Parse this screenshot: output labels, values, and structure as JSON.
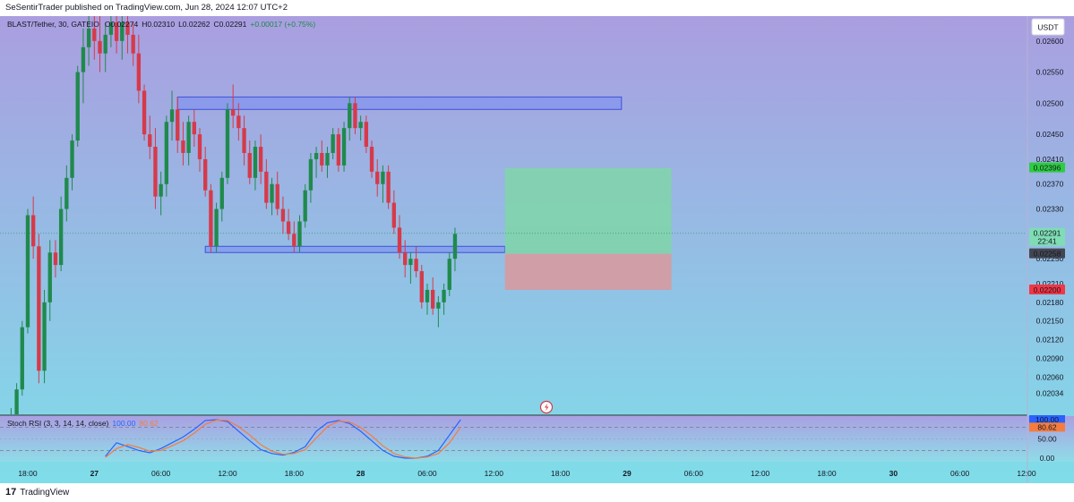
{
  "header": {
    "publisher_line": "SeSentirTrader published on TradingView.com, Jun 28, 2024 12:07 UTC+2"
  },
  "footer": {
    "logo_glyph": "17",
    "brand": "TradingView"
  },
  "colors": {
    "bull": "#1f8a4c",
    "bear": "#d63a4a",
    "bg_top": "#aa9ee0",
    "bg_bottom": "#7fdde9",
    "zone_fill": "#7b8ff0",
    "zone_stroke": "#3f51d8",
    "target_fill": "#7fd6a9",
    "stop_fill": "#d69a9f",
    "rsi_k": "#2962ff",
    "rsi_d": "#f57c3f"
  },
  "chart_data": [
    {
      "type": "candlestick",
      "title": "BLAST/Tether, 30, GATEIO",
      "ohlc_legend": {
        "open": "O0.02274",
        "high": "H0.02310",
        "low": "L0.02262",
        "close": "C0.02291",
        "change": "+0.00017 (+0.75%)"
      },
      "currency_button": "USDT",
      "y_ticks": [
        "0.02600",
        "0.02550",
        "0.02500",
        "0.02450",
        "0.02410",
        "0.02370",
        "0.02330",
        "0.02250",
        "0.02210",
        "0.02180",
        "0.02150",
        "0.02120",
        "0.02090",
        "0.02060",
        "0.02034"
      ],
      "y_tick_values": [
        0.026,
        0.0255,
        0.025,
        0.0245,
        0.0241,
        0.0237,
        0.0233,
        0.0225,
        0.0221,
        0.0218,
        0.0215,
        0.0212,
        0.0209,
        0.0206,
        0.02034
      ],
      "ylim": [
        0.02,
        0.0264
      ],
      "x_ticks": [
        "18:00",
        "27",
        "06:00",
        "12:00",
        "18:00",
        "28",
        "06:00",
        "12:00",
        "18:00",
        "29",
        "06:00",
        "12:00",
        "18:00",
        "30",
        "06:00",
        "12:00"
      ],
      "x_tick_hours": [
        18,
        24,
        30,
        36,
        42,
        48,
        54,
        60,
        66,
        72,
        78,
        84,
        90,
        96,
        102,
        108
      ],
      "x_start_hour": 15.5,
      "x_end_hour": 108,
      "price_labels": [
        {
          "label": "0.02396",
          "value": 0.02396,
          "color": "#2ecc40",
          "text_color": "#131722"
        },
        {
          "label": "0.02291",
          "sublabel": "22:41",
          "value": 0.02291,
          "color": "#7fdcb4",
          "text_color": "#131722"
        },
        {
          "label": "0.02258",
          "value": 0.02258,
          "color": "#434651",
          "text_color": "#ffffff"
        },
        {
          "label": "0.02200",
          "value": 0.022,
          "color": "#f23645",
          "text_color": "#ffffff"
        }
      ],
      "zones": [
        {
          "hour_start": 31.5,
          "hour_end": 71.5,
          "price_low": 0.0249,
          "price_high": 0.0251
        },
        {
          "hour_start": 34,
          "hour_end": 61,
          "price_low": 0.0226,
          "price_high": 0.0227
        }
      ],
      "position": {
        "hour_start": 61,
        "hour_end": 76,
        "entry": 0.02258,
        "target": 0.02396,
        "stop": 0.022
      },
      "candles": [
        [
          16,
          0.0199,
          0.02,
          0.0199,
          0.02
        ],
        [
          16.5,
          0.02,
          0.0201,
          0.0199,
          0.02
        ],
        [
          17,
          0.02,
          0.0205,
          0.0199,
          0.0204
        ],
        [
          17.5,
          0.0204,
          0.0215,
          0.0203,
          0.0214
        ],
        [
          18,
          0.0214,
          0.0233,
          0.0213,
          0.0232
        ],
        [
          18.5,
          0.0232,
          0.0235,
          0.0225,
          0.0227
        ],
        [
          19,
          0.0227,
          0.0229,
          0.0205,
          0.0207
        ],
        [
          19.5,
          0.0207,
          0.022,
          0.0205,
          0.0218
        ],
        [
          20,
          0.0218,
          0.0228,
          0.0215,
          0.0226
        ],
        [
          20.5,
          0.0226,
          0.0228,
          0.0222,
          0.0224
        ],
        [
          21,
          0.0224,
          0.0235,
          0.0223,
          0.0233
        ],
        [
          21.5,
          0.0233,
          0.024,
          0.0231,
          0.0238
        ],
        [
          22,
          0.0238,
          0.0245,
          0.0236,
          0.0244
        ],
        [
          22.5,
          0.0244,
          0.0256,
          0.0243,
          0.0255
        ],
        [
          23,
          0.0255,
          0.0262,
          0.025,
          0.0259
        ],
        [
          23.5,
          0.0259,
          0.0265,
          0.0256,
          0.0262
        ],
        [
          24,
          0.0262,
          0.0264,
          0.0257,
          0.026
        ],
        [
          24.5,
          0.026,
          0.0264,
          0.0255,
          0.0258
        ],
        [
          25,
          0.0258,
          0.0263,
          0.0255,
          0.0261
        ],
        [
          25.5,
          0.0261,
          0.0264,
          0.0259,
          0.0263
        ],
        [
          26,
          0.0263,
          0.0264,
          0.0258,
          0.026
        ],
        [
          26.5,
          0.026,
          0.0264,
          0.0257,
          0.0263
        ],
        [
          27,
          0.0263,
          0.0264,
          0.0258,
          0.0261
        ],
        [
          27.5,
          0.0261,
          0.0263,
          0.0256,
          0.0258
        ],
        [
          28,
          0.0258,
          0.0261,
          0.025,
          0.0252
        ],
        [
          28.5,
          0.0252,
          0.0253,
          0.0244,
          0.0245
        ],
        [
          29,
          0.0245,
          0.0248,
          0.0241,
          0.0243
        ],
        [
          29.5,
          0.0243,
          0.0246,
          0.0233,
          0.0235
        ],
        [
          30,
          0.0235,
          0.0239,
          0.0232,
          0.0237
        ],
        [
          30.5,
          0.0237,
          0.0248,
          0.0235,
          0.0247
        ],
        [
          31,
          0.0247,
          0.0252,
          0.0244,
          0.0249
        ],
        [
          31.5,
          0.0249,
          0.0251,
          0.0242,
          0.0244
        ],
        [
          32,
          0.0244,
          0.0247,
          0.024,
          0.0242
        ],
        [
          32.5,
          0.0242,
          0.0248,
          0.024,
          0.0247
        ],
        [
          33,
          0.0247,
          0.0249,
          0.0243,
          0.0245
        ],
        [
          33.5,
          0.0245,
          0.0246,
          0.0239,
          0.0241
        ],
        [
          34,
          0.0241,
          0.0243,
          0.0235,
          0.0236
        ],
        [
          34.5,
          0.0236,
          0.0237,
          0.0226,
          0.0227
        ],
        [
          35,
          0.0227,
          0.0234,
          0.0226,
          0.0233
        ],
        [
          35.5,
          0.0233,
          0.0239,
          0.0231,
          0.0238
        ],
        [
          36,
          0.0238,
          0.025,
          0.0237,
          0.0249
        ],
        [
          36.5,
          0.0249,
          0.0253,
          0.0246,
          0.0248
        ],
        [
          37,
          0.0248,
          0.025,
          0.0244,
          0.0246
        ],
        [
          37.5,
          0.0246,
          0.0248,
          0.024,
          0.0242
        ],
        [
          38,
          0.0242,
          0.0244,
          0.0237,
          0.0238
        ],
        [
          38.5,
          0.0238,
          0.0244,
          0.0236,
          0.0243
        ],
        [
          39,
          0.0243,
          0.0245,
          0.0237,
          0.0239
        ],
        [
          39.5,
          0.0239,
          0.0241,
          0.0233,
          0.0234
        ],
        [
          40,
          0.0234,
          0.0238,
          0.0232,
          0.0237
        ],
        [
          40.5,
          0.0237,
          0.0239,
          0.0232,
          0.0233
        ],
        [
          41,
          0.0233,
          0.0235,
          0.0229,
          0.0231
        ],
        [
          41.5,
          0.0231,
          0.0233,
          0.0228,
          0.0229
        ],
        [
          42,
          0.0229,
          0.0231,
          0.0226,
          0.0227
        ],
        [
          42.5,
          0.0227,
          0.0232,
          0.0226,
          0.0231
        ],
        [
          43,
          0.0231,
          0.0237,
          0.023,
          0.0236
        ],
        [
          43.5,
          0.0236,
          0.0242,
          0.0234,
          0.0241
        ],
        [
          44,
          0.0241,
          0.0243,
          0.0238,
          0.0242
        ],
        [
          44.5,
          0.0242,
          0.0244,
          0.0239,
          0.024
        ],
        [
          45,
          0.024,
          0.0243,
          0.0238,
          0.0242
        ],
        [
          45.5,
          0.0242,
          0.0246,
          0.0241,
          0.0245
        ],
        [
          46,
          0.0245,
          0.0246,
          0.0239,
          0.024
        ],
        [
          46.5,
          0.024,
          0.0247,
          0.0239,
          0.0246
        ],
        [
          47,
          0.0246,
          0.0251,
          0.0244,
          0.025
        ],
        [
          47.5,
          0.025,
          0.0251,
          0.0245,
          0.0246
        ],
        [
          48,
          0.0246,
          0.0248,
          0.0244,
          0.0247
        ],
        [
          48.5,
          0.0247,
          0.0248,
          0.0242,
          0.0243
        ],
        [
          49,
          0.0243,
          0.0244,
          0.0238,
          0.0239
        ],
        [
          49.5,
          0.0239,
          0.0241,
          0.0235,
          0.0237
        ],
        [
          50,
          0.0237,
          0.024,
          0.0234,
          0.0239
        ],
        [
          50.5,
          0.0239,
          0.024,
          0.0233,
          0.0234
        ],
        [
          51,
          0.0234,
          0.0236,
          0.0229,
          0.023
        ],
        [
          51.5,
          0.023,
          0.0232,
          0.0225,
          0.0226
        ],
        [
          52,
          0.0226,
          0.0228,
          0.0222,
          0.0224
        ],
        [
          52.5,
          0.0224,
          0.0226,
          0.0221,
          0.0225
        ],
        [
          53,
          0.0225,
          0.0227,
          0.0222,
          0.0223
        ],
        [
          53.5,
          0.0223,
          0.0224,
          0.0217,
          0.0218
        ],
        [
          54,
          0.0218,
          0.0221,
          0.0216,
          0.022
        ],
        [
          54.5,
          0.022,
          0.0222,
          0.0216,
          0.0217
        ],
        [
          55,
          0.0217,
          0.0219,
          0.0214,
          0.0218
        ],
        [
          55.5,
          0.0218,
          0.0221,
          0.0216,
          0.022
        ],
        [
          56,
          0.022,
          0.0226,
          0.0219,
          0.0225
        ],
        [
          56.5,
          0.0225,
          0.023,
          0.0223,
          0.0229
        ]
      ]
    },
    {
      "type": "line",
      "title": "Stoch RSI (3, 3, 14, 14, close)",
      "legend_values": [
        "100.00",
        "80.62"
      ],
      "y_ticks": [
        "100.00",
        "80.62",
        "50.00",
        "0.00"
      ],
      "ylim": [
        0,
        100
      ],
      "x": [
        25,
        26,
        27,
        28,
        29,
        30,
        31,
        32,
        33,
        34,
        35,
        36,
        37,
        38,
        39,
        40,
        41,
        42,
        43,
        44,
        45,
        46,
        47,
        48,
        49,
        50,
        51,
        52,
        53,
        54,
        55,
        56,
        57
      ],
      "series": [
        {
          "values": [
            5,
            40,
            30,
            20,
            14,
            25,
            40,
            55,
            75,
            98,
            100,
            95,
            70,
            45,
            22,
            12,
            8,
            15,
            30,
            70,
            92,
            98,
            90,
            70,
            45,
            20,
            5,
            0,
            0,
            5,
            20,
            60,
            100
          ]
        },
        {
          "values": [
            2,
            25,
            35,
            28,
            18,
            20,
            32,
            45,
            65,
            88,
            99,
            98,
            82,
            60,
            35,
            18,
            10,
            12,
            22,
            52,
            82,
            96,
            94,
            80,
            58,
            32,
            12,
            3,
            0,
            3,
            12,
            40,
            80.62
          ]
        }
      ]
    }
  ]
}
